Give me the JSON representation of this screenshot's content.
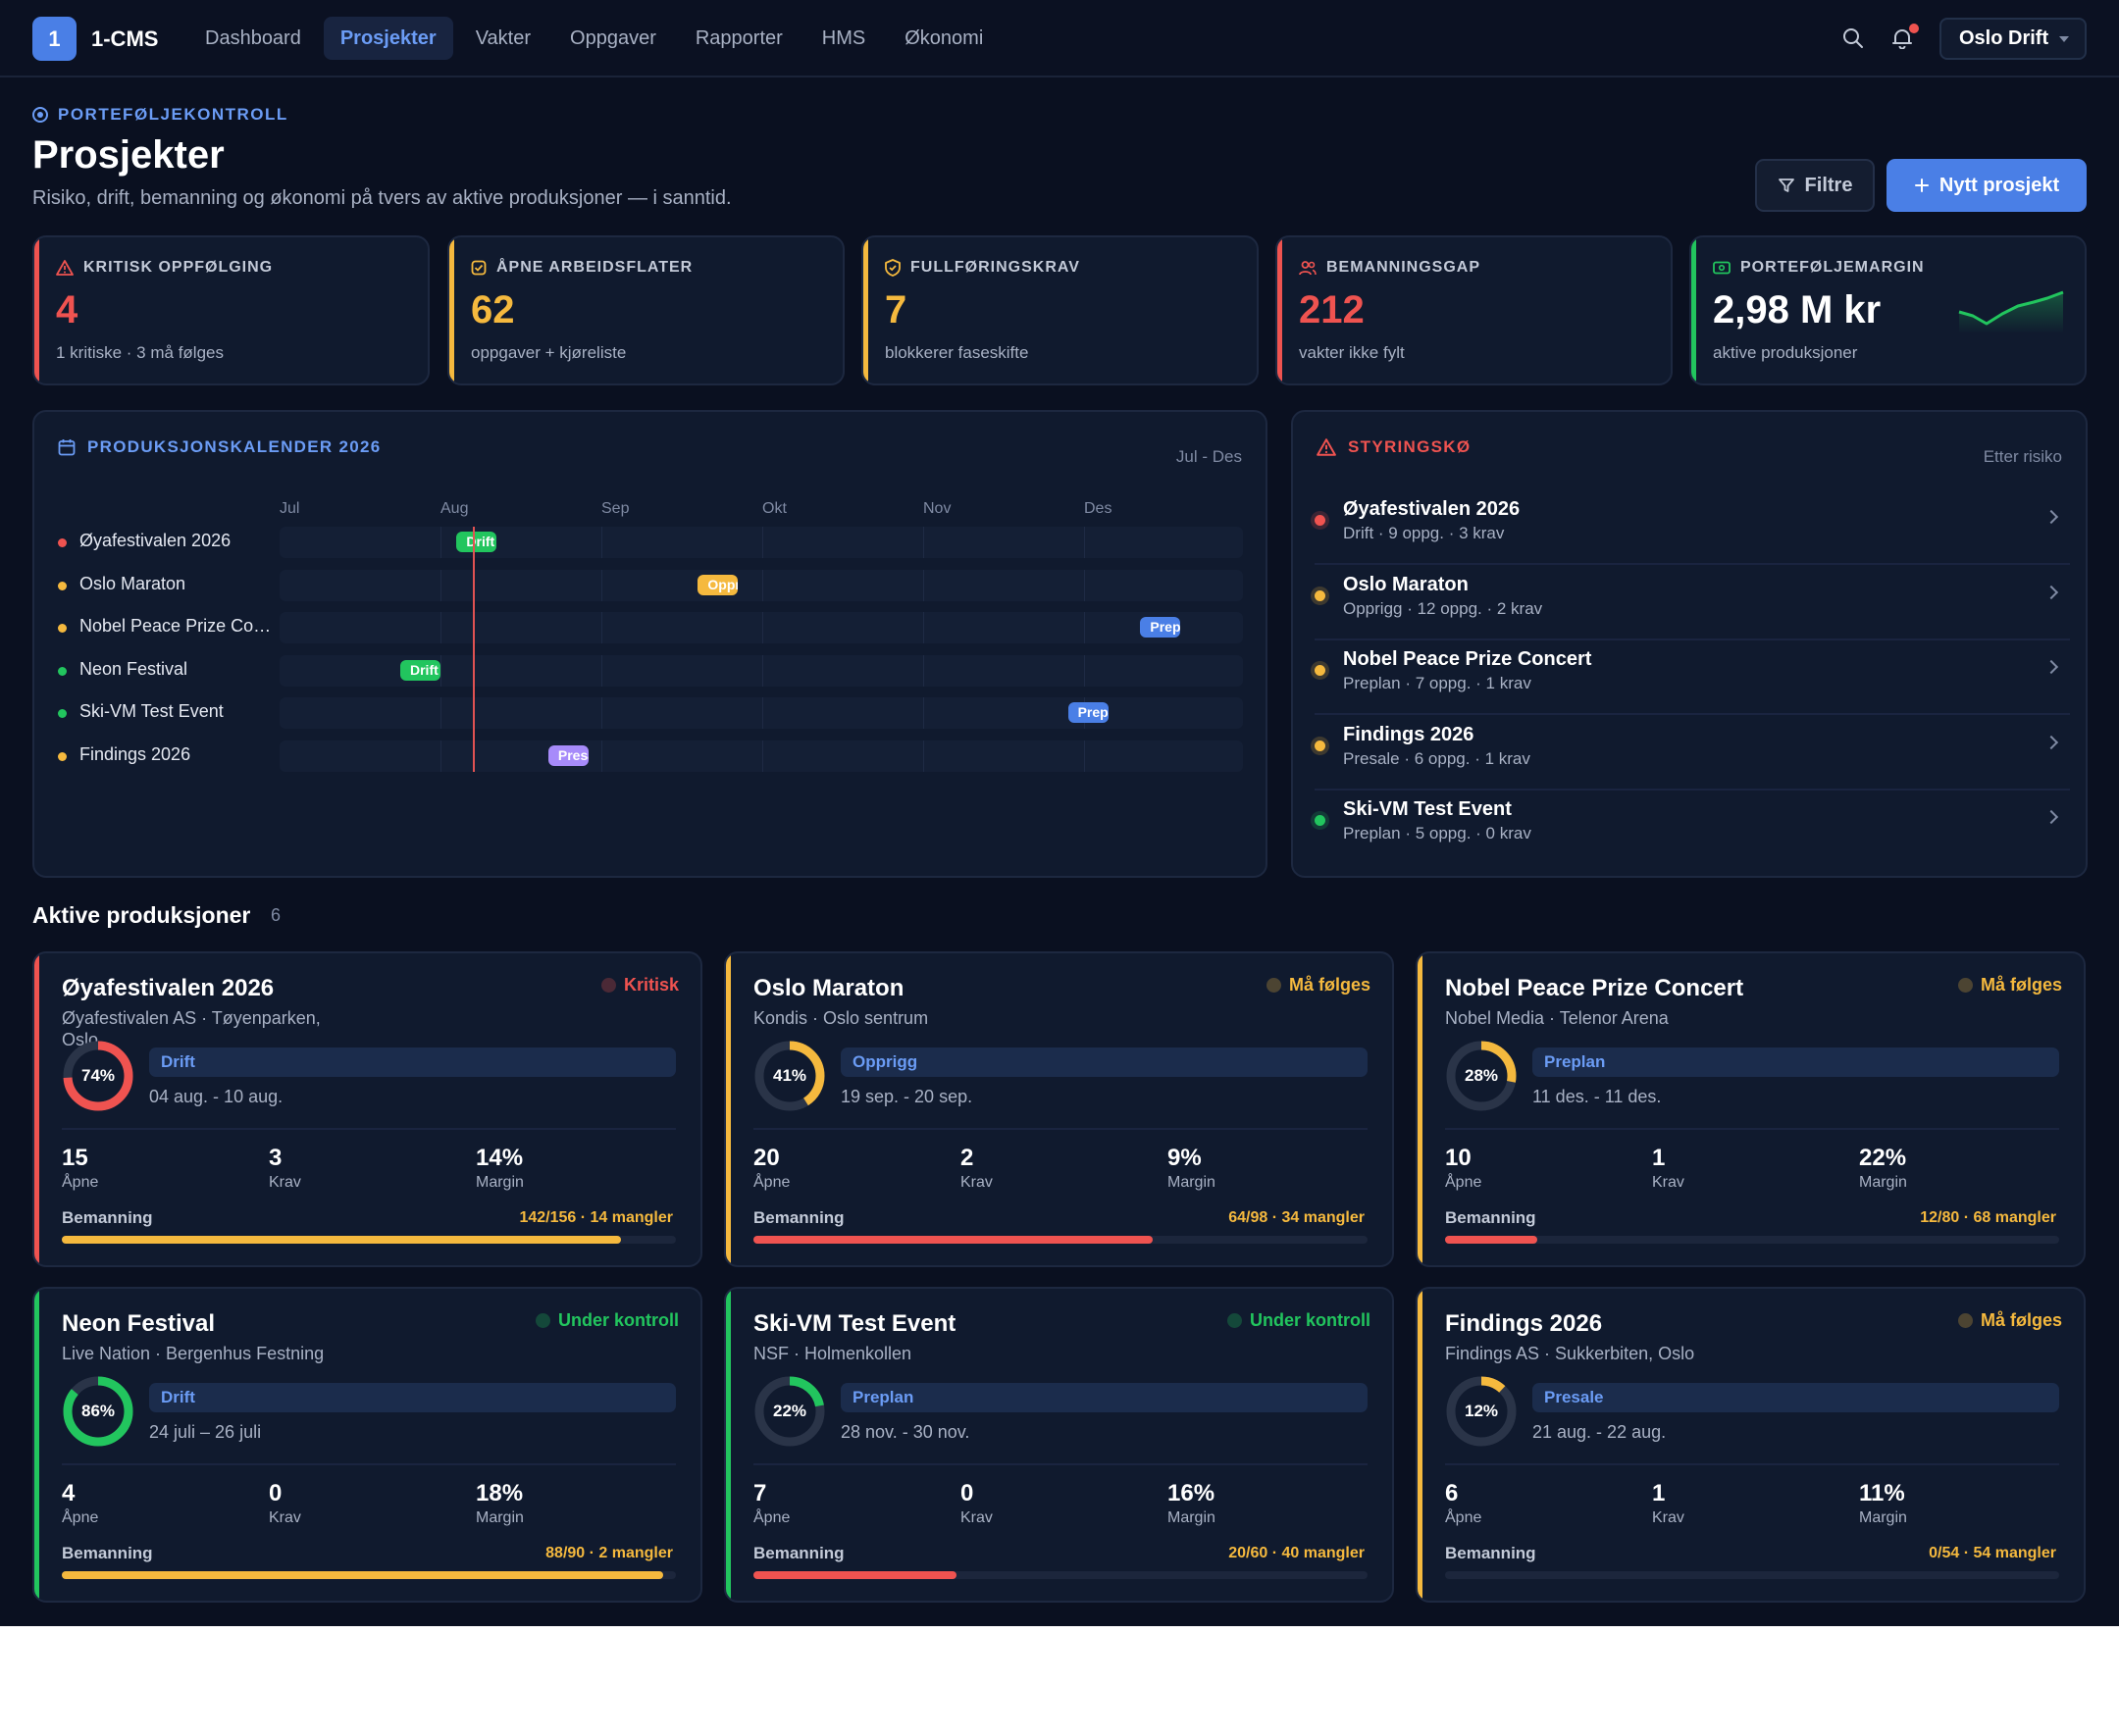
{
  "app": {
    "logo": "1",
    "brand": "1-CMS",
    "nav": [
      "Dashboard",
      "Prosjekter",
      "Vakter",
      "Oppgaver",
      "Rapporter",
      "HMS",
      "Økonomi"
    ],
    "org": "Oslo Drift"
  },
  "header": {
    "eyebrow": "PORTEFØLJEKONTROLL",
    "title": "Prosjekter",
    "subtitle": "Risiko, drift, bemanning og økonomi på tvers av aktive produksjoner — i sanntid.",
    "filter_label": "Filtre",
    "new_label": "Nytt prosjekt"
  },
  "kpis": [
    {
      "label": "KRITISK OPPFØLGING",
      "value": "4",
      "caption": "1 kritiske · 3 må følges",
      "color": "#ef5350",
      "icon": "warning-icon"
    },
    {
      "label": "ÅPNE ARBEIDSFLATER",
      "value": "62",
      "caption": "oppgaver + kjøreliste",
      "color": "#f5b93e",
      "icon": "checkbox-icon"
    },
    {
      "label": "FULLFØRINGSKRAV",
      "value": "7",
      "caption": "blokkerer faseskifte",
      "color": "#f5b93e",
      "icon": "shield-icon"
    },
    {
      "label": "BEMANNINGSGAP",
      "value": "212",
      "caption": "vakter ikke fylt",
      "color": "#ef5350",
      "icon": "users-icon"
    },
    {
      "label": "PORTEFØLJEMARGIN",
      "value": "2,98 M kr",
      "caption": "aktive produksjoner",
      "color": "#22c55e",
      "icon": "cash-icon"
    }
  ],
  "calendar": {
    "title": "PRODUKSJONSKALENDER 2026",
    "range": "Jul - Des",
    "months": [
      "Jul",
      "Aug",
      "Sep",
      "Okt",
      "Nov",
      "Des"
    ],
    "today_month": 1.2,
    "rows": [
      {
        "name": "Øyafestivalen 2026",
        "dot": "#ef5350",
        "pill": "Drift",
        "start": 1.1,
        "end": 1.35,
        "color": "#22c55e"
      },
      {
        "name": "Oslo Maraton",
        "dot": "#f5b93e",
        "pill": "Opprigg",
        "start": 2.6,
        "end": 2.85,
        "color": "#f5b93e"
      },
      {
        "name": "Nobel Peace Prize Concert",
        "dot": "#f5b93e",
        "pill": "Preplan",
        "start": 5.35,
        "end": 5.6,
        "color": "#4a7fe6"
      },
      {
        "name": "Neon Festival",
        "dot": "#22c55e",
        "pill": "Drift",
        "start": 0.75,
        "end": 1.0,
        "color": "#22c55e"
      },
      {
        "name": "Ski-VM Test Event",
        "dot": "#22c55e",
        "pill": "Preplan",
        "start": 4.9,
        "end": 5.15,
        "color": "#4a7fe6"
      },
      {
        "name": "Findings 2026",
        "dot": "#f5b93e",
        "pill": "Presale",
        "start": 1.67,
        "end": 1.92,
        "color": "#a78bfa"
      }
    ]
  },
  "queue": {
    "title": "STYRINGSKØ",
    "sort": "Etter risiko",
    "items": [
      {
        "name": "Øyafestivalen 2026",
        "sub": "Drift · 9 oppg. · 3 krav",
        "dot": "#ef5350"
      },
      {
        "name": "Oslo Maraton",
        "sub": "Opprigg · 12 oppg. · 2 krav",
        "dot": "#f5b93e"
      },
      {
        "name": "Nobel Peace Prize Concert",
        "sub": "Preplan · 7 oppg. · 1 krav",
        "dot": "#f5b93e"
      },
      {
        "name": "Findings 2026",
        "sub": "Presale · 6 oppg. · 1 krav",
        "dot": "#f5b93e"
      },
      {
        "name": "Ski-VM Test Event",
        "sub": "Preplan · 5 oppg. · 0 krav",
        "dot": "#22c55e"
      }
    ]
  },
  "active": {
    "title": "Aktive produksjoner",
    "count": "6",
    "cards": [
      {
        "name": "Øyafestivalen 2026",
        "sub": "Øyafestivalen AS · Tøyenparken, Oslo",
        "status": "Kritisk",
        "status_color": "#ef5350",
        "accent": "#ef5350",
        "pct": "74%",
        "pct_value": 0.74,
        "ring_color": "#ef5350",
        "phase": "Drift",
        "dates": "04 aug. - 10 aug.",
        "open": "15",
        "open_label": "Åpne",
        "krav": "3",
        "krav_label": "Krav",
        "margin": "14%",
        "margin_label": "Margin",
        "bem_label": "Bemanning",
        "bem_value": "142/156 · 14 mangler",
        "bem_fill": 0.91,
        "bem_color": "#f5b93e"
      },
      {
        "name": "Oslo Maraton",
        "sub": "Kondis · Oslo sentrum",
        "status": "Må følges",
        "status_color": "#f5b93e",
        "accent": "#f5b93e",
        "pct": "41%",
        "pct_value": 0.41,
        "ring_color": "#f5b93e",
        "phase": "Opprigg",
        "dates": "19 sep. - 20 sep.",
        "open": "20",
        "open_label": "Åpne",
        "krav": "2",
        "krav_label": "Krav",
        "margin": "9%",
        "margin_label": "Margin",
        "bem_label": "Bemanning",
        "bem_value": "64/98 · 34 mangler",
        "bem_fill": 0.65,
        "bem_color": "#ef5350"
      },
      {
        "name": "Nobel Peace Prize Concert",
        "sub": "Nobel Media · Telenor Arena",
        "status": "Må følges",
        "status_color": "#f5b93e",
        "accent": "#f5b93e",
        "pct": "28%",
        "pct_value": 0.28,
        "ring_color": "#f5b93e",
        "phase": "Preplan",
        "dates": "11 des. - 11 des.",
        "open": "10",
        "open_label": "Åpne",
        "krav": "1",
        "krav_label": "Krav",
        "margin": "22%",
        "margin_label": "Margin",
        "bem_label": "Bemanning",
        "bem_value": "12/80 · 68 mangler",
        "bem_fill": 0.15,
        "bem_color": "#ef5350"
      },
      {
        "name": "Neon Festival",
        "sub": "Live Nation · Bergenhus Festning",
        "status": "Under kontroll",
        "status_color": "#22c55e",
        "accent": "#22c55e",
        "pct": "86%",
        "pct_value": 0.86,
        "ring_color": "#22c55e",
        "phase": "Drift",
        "dates": "24 juli – 26 juli",
        "open": "4",
        "open_label": "Åpne",
        "krav": "0",
        "krav_label": "Krav",
        "margin": "18%",
        "margin_label": "Margin",
        "bem_label": "Bemanning",
        "bem_value": "88/90 · 2 mangler",
        "bem_fill": 0.98,
        "bem_color": "#f5b93e"
      },
      {
        "name": "Ski-VM Test Event",
        "sub": "NSF · Holmenkollen",
        "status": "Under kontroll",
        "status_color": "#22c55e",
        "accent": "#22c55e",
        "pct": "22%",
        "pct_value": 0.22,
        "ring_color": "#22c55e",
        "phase": "Preplan",
        "dates": "28 nov. - 30 nov.",
        "open": "7",
        "open_label": "Åpne",
        "krav": "0",
        "krav_label": "Krav",
        "margin": "16%",
        "margin_label": "Margin",
        "bem_label": "Bemanning",
        "bem_value": "20/60 · 40 mangler",
        "bem_fill": 0.33,
        "bem_color": "#ef5350"
      },
      {
        "name": "Findings 2026",
        "sub": "Findings AS · Sukkerbiten, Oslo",
        "status": "Må følges",
        "status_color": "#f5b93e",
        "accent": "#f5b93e",
        "pct": "12%",
        "pct_value": 0.12,
        "ring_color": "#f5b93e",
        "phase": "Presale",
        "dates": "21 aug. - 22 aug.",
        "open": "6",
        "open_label": "Åpne",
        "krav": "1",
        "krav_label": "Krav",
        "margin": "11%",
        "margin_label": "Margin",
        "bem_label": "Bemanning",
        "bem_value": "0/54 · 54 mangler",
        "bem_fill": 0.0,
        "bem_color": "#ef5350"
      }
    ]
  }
}
